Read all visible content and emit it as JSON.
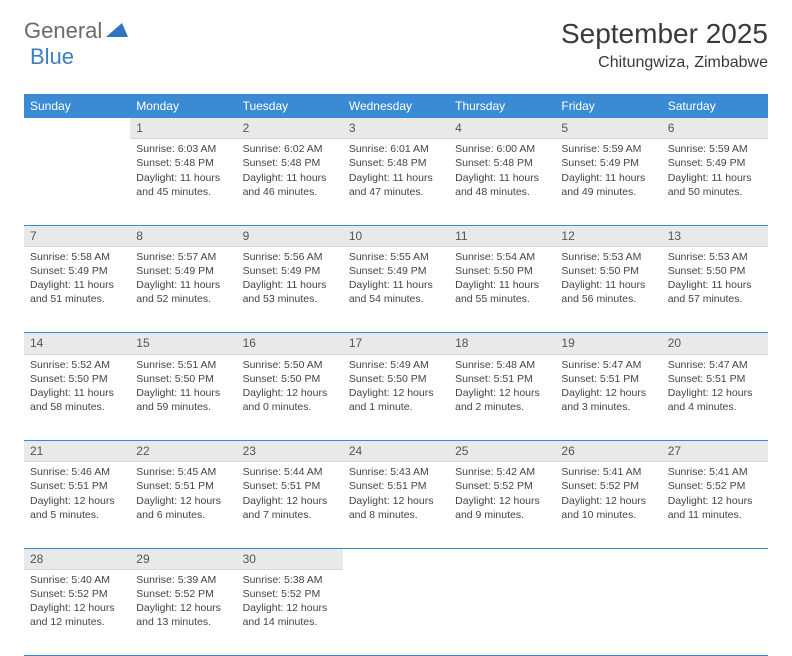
{
  "brand": {
    "part1": "General",
    "part2": "Blue"
  },
  "title": "September 2025",
  "location": "Chitungwiza, Zimbabwe",
  "colors": {
    "header_bg": "#3b8bd4",
    "header_fg": "#ffffff",
    "daynum_bg": "#e9e9e9",
    "rule": "#3b8bd4",
    "brand_gray": "#6b6b6b",
    "brand_blue": "#3b7fc4",
    "text": "#3a3a3a"
  },
  "fonts": {
    "title_pt": 28,
    "location_pt": 16,
    "dayhead_pt": 12,
    "body_pt": 10.5
  },
  "day_headers": [
    "Sunday",
    "Monday",
    "Tuesday",
    "Wednesday",
    "Thursday",
    "Friday",
    "Saturday"
  ],
  "weeks": [
    [
      null,
      {
        "n": "1",
        "sr": "6:03 AM",
        "ss": "5:48 PM",
        "dl": "11 hours and 45 minutes."
      },
      {
        "n": "2",
        "sr": "6:02 AM",
        "ss": "5:48 PM",
        "dl": "11 hours and 46 minutes."
      },
      {
        "n": "3",
        "sr": "6:01 AM",
        "ss": "5:48 PM",
        "dl": "11 hours and 47 minutes."
      },
      {
        "n": "4",
        "sr": "6:00 AM",
        "ss": "5:48 PM",
        "dl": "11 hours and 48 minutes."
      },
      {
        "n": "5",
        "sr": "5:59 AM",
        "ss": "5:49 PM",
        "dl": "11 hours and 49 minutes."
      },
      {
        "n": "6",
        "sr": "5:59 AM",
        "ss": "5:49 PM",
        "dl": "11 hours and 50 minutes."
      }
    ],
    [
      {
        "n": "7",
        "sr": "5:58 AM",
        "ss": "5:49 PM",
        "dl": "11 hours and 51 minutes."
      },
      {
        "n": "8",
        "sr": "5:57 AM",
        "ss": "5:49 PM",
        "dl": "11 hours and 52 minutes."
      },
      {
        "n": "9",
        "sr": "5:56 AM",
        "ss": "5:49 PM",
        "dl": "11 hours and 53 minutes."
      },
      {
        "n": "10",
        "sr": "5:55 AM",
        "ss": "5:49 PM",
        "dl": "11 hours and 54 minutes."
      },
      {
        "n": "11",
        "sr": "5:54 AM",
        "ss": "5:50 PM",
        "dl": "11 hours and 55 minutes."
      },
      {
        "n": "12",
        "sr": "5:53 AM",
        "ss": "5:50 PM",
        "dl": "11 hours and 56 minutes."
      },
      {
        "n": "13",
        "sr": "5:53 AM",
        "ss": "5:50 PM",
        "dl": "11 hours and 57 minutes."
      }
    ],
    [
      {
        "n": "14",
        "sr": "5:52 AM",
        "ss": "5:50 PM",
        "dl": "11 hours and 58 minutes."
      },
      {
        "n": "15",
        "sr": "5:51 AM",
        "ss": "5:50 PM",
        "dl": "11 hours and 59 minutes."
      },
      {
        "n": "16",
        "sr": "5:50 AM",
        "ss": "5:50 PM",
        "dl": "12 hours and 0 minutes."
      },
      {
        "n": "17",
        "sr": "5:49 AM",
        "ss": "5:50 PM",
        "dl": "12 hours and 1 minute."
      },
      {
        "n": "18",
        "sr": "5:48 AM",
        "ss": "5:51 PM",
        "dl": "12 hours and 2 minutes."
      },
      {
        "n": "19",
        "sr": "5:47 AM",
        "ss": "5:51 PM",
        "dl": "12 hours and 3 minutes."
      },
      {
        "n": "20",
        "sr": "5:47 AM",
        "ss": "5:51 PM",
        "dl": "12 hours and 4 minutes."
      }
    ],
    [
      {
        "n": "21",
        "sr": "5:46 AM",
        "ss": "5:51 PM",
        "dl": "12 hours and 5 minutes."
      },
      {
        "n": "22",
        "sr": "5:45 AM",
        "ss": "5:51 PM",
        "dl": "12 hours and 6 minutes."
      },
      {
        "n": "23",
        "sr": "5:44 AM",
        "ss": "5:51 PM",
        "dl": "12 hours and 7 minutes."
      },
      {
        "n": "24",
        "sr": "5:43 AM",
        "ss": "5:51 PM",
        "dl": "12 hours and 8 minutes."
      },
      {
        "n": "25",
        "sr": "5:42 AM",
        "ss": "5:52 PM",
        "dl": "12 hours and 9 minutes."
      },
      {
        "n": "26",
        "sr": "5:41 AM",
        "ss": "5:52 PM",
        "dl": "12 hours and 10 minutes."
      },
      {
        "n": "27",
        "sr": "5:41 AM",
        "ss": "5:52 PM",
        "dl": "12 hours and 11 minutes."
      }
    ],
    [
      {
        "n": "28",
        "sr": "5:40 AM",
        "ss": "5:52 PM",
        "dl": "12 hours and 12 minutes."
      },
      {
        "n": "29",
        "sr": "5:39 AM",
        "ss": "5:52 PM",
        "dl": "12 hours and 13 minutes."
      },
      {
        "n": "30",
        "sr": "5:38 AM",
        "ss": "5:52 PM",
        "dl": "12 hours and 14 minutes."
      },
      null,
      null,
      null,
      null
    ]
  ],
  "labels": {
    "sunrise": "Sunrise: ",
    "sunset": "Sunset: ",
    "daylight": "Daylight: "
  }
}
